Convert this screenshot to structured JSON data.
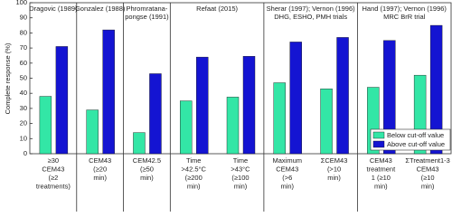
{
  "chart_data": {
    "type": "bar",
    "ylabel": "Complete response (%)",
    "panel_headers": [
      [
        "Dragovic (1989)"
      ],
      [
        "Gonzalez (1988)"
      ],
      [
        "Phromratana-",
        "pongse (1991)"
      ],
      [
        "Refaat (2015)"
      ],
      null,
      [
        "Sherar (1997); Vernon (1996)",
        "DHG, ESHO, PMH trials"
      ],
      null,
      [
        "Hand (1997); Vernon (1996)",
        "MRC BrR trial"
      ],
      null
    ],
    "categories": [
      [
        "≥30",
        "CEM43",
        "(≥2",
        "treatments)"
      ],
      [
        "CEM43",
        "(≥20",
        "min)"
      ],
      [
        "CEM42.5",
        "(≥50",
        "min)"
      ],
      [
        "Time",
        ">42.5°C",
        "(≥200",
        "min)"
      ],
      [
        "Time",
        ">43°C",
        "(≥100",
        "min)"
      ],
      [
        "Maximum",
        "CEM43",
        "(>6",
        "min)"
      ],
      [
        "ΣCEM43",
        "(>10",
        "min)"
      ],
      [
        "CEM43",
        "treatment",
        "1 (≥10",
        "min)"
      ],
      [
        "ΣTreatment1-3",
        "CEM43",
        "(≥10",
        "min)"
      ]
    ],
    "series": [
      {
        "name": "Below cut-off value",
        "color": "#33e6a6",
        "values": [
          38,
          29,
          14,
          35,
          37.5,
          47,
          43,
          44,
          52
        ]
      },
      {
        "name": "Above cut-off value",
        "color": "#1414d2",
        "values": [
          71,
          82,
          53,
          64,
          64.5,
          74,
          77,
          75,
          85
        ]
      }
    ],
    "ylim": [
      0,
      100
    ],
    "yticks": [
      0,
      10,
      20,
      30,
      40,
      50,
      60,
      70,
      80,
      90,
      100
    ],
    "legend": "lower right"
  }
}
